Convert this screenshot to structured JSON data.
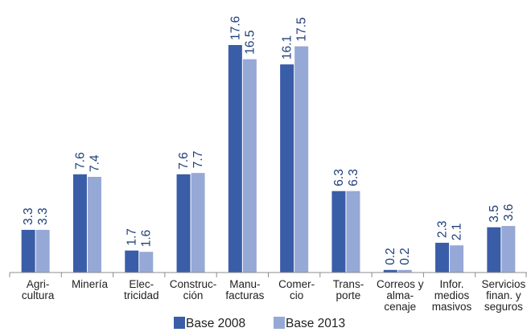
{
  "chart_data": {
    "type": "bar",
    "categories": [
      [
        "Agri-",
        "cultura"
      ],
      [
        "Minería"
      ],
      [
        "Elec-",
        "tricidad"
      ],
      [
        "Construc-",
        "ción"
      ],
      [
        "Manu-",
        "facturas"
      ],
      [
        "Comer-",
        "cio"
      ],
      [
        "Trans-",
        "porte"
      ],
      [
        "Correos y",
        "alma-",
        "cenaje"
      ],
      [
        "Infor.",
        "medios",
        "masivos"
      ],
      [
        "Servicios",
        "finan. y",
        "seguros"
      ]
    ],
    "series": [
      {
        "name": "Base 2008",
        "color": "#3a5da8",
        "values": [
          3.3,
          7.6,
          1.7,
          7.6,
          17.6,
          16.1,
          6.3,
          0.2,
          2.3,
          3.5
        ],
        "labels": [
          "3.3",
          "7.6",
          "1.7",
          "7.6",
          "17.6",
          "16.1",
          "6.3",
          "0.2",
          "2.3",
          "3.5"
        ]
      },
      {
        "name": "Base 2013",
        "color": "#96a8d6",
        "values": [
          3.3,
          7.4,
          1.6,
          7.7,
          16.5,
          17.5,
          6.3,
          0.2,
          2.1,
          3.6
        ],
        "labels": [
          "3.3",
          "7.4",
          "1.6",
          "7.7",
          "16.5",
          "17.5",
          "6.3",
          "0.2",
          "2.1",
          "3.6"
        ]
      }
    ],
    "title": "",
    "xlabel": "",
    "ylabel": "",
    "ylim": [
      0,
      17.6
    ],
    "grid": false,
    "legend_position": "bottom"
  }
}
